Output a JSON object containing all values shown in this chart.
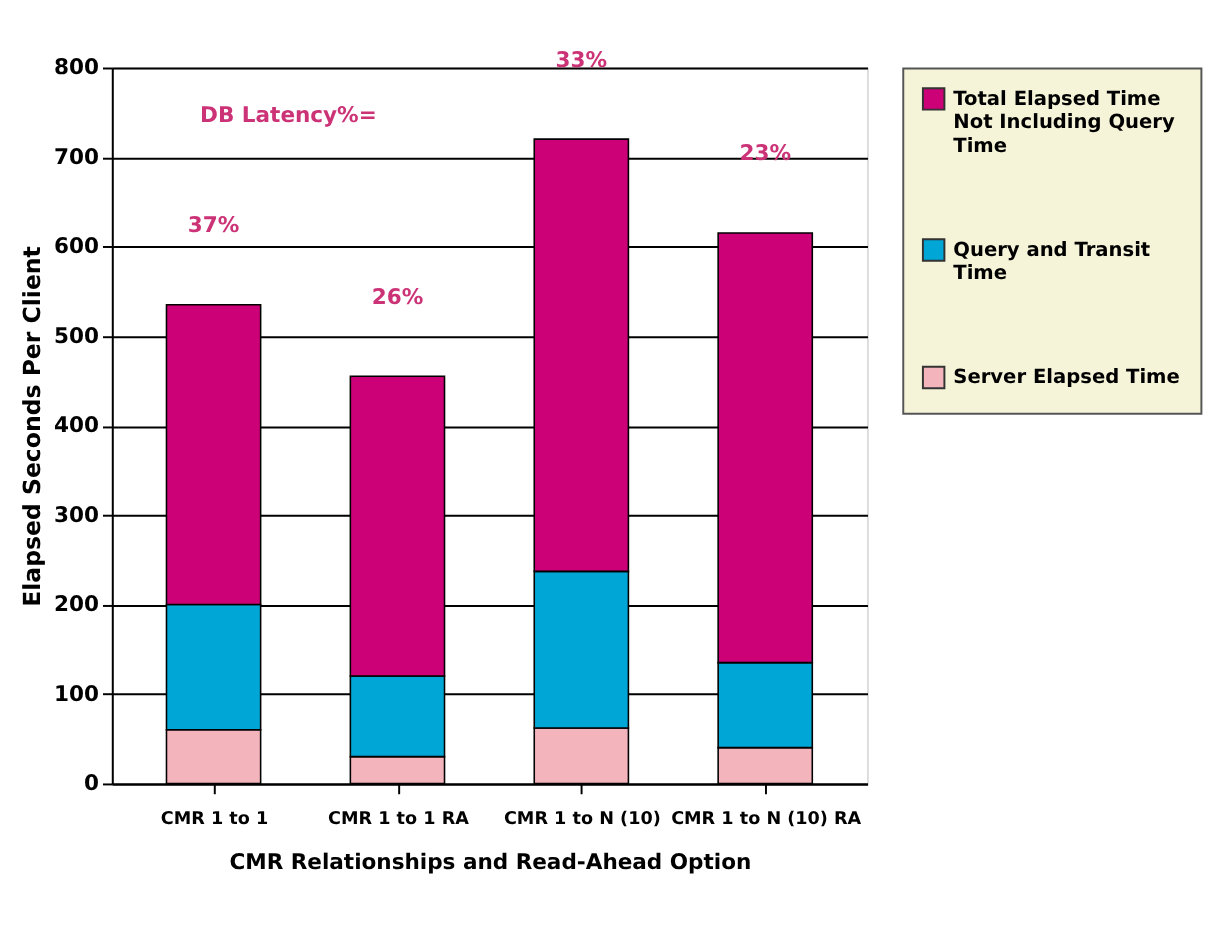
{
  "chart_data": {
    "type": "bar",
    "stacked": true,
    "xlabel": "CMR Relationships and Read-Ahead Option",
    "ylabel": "Elapsed Seconds Per Client",
    "categories": [
      "CMR 1 to 1",
      "CMR 1 to 1 RA",
      "CMR 1 to N (10)",
      "CMR 1 to N (10) RA"
    ],
    "series": [
      {
        "name": "Server Elapsed Time",
        "color": "#f4b4bc",
        "values": [
          60,
          30,
          62,
          40
        ]
      },
      {
        "name": "Query and Transit Time",
        "color": "#00a6d6",
        "values": [
          140,
          90,
          175,
          95
        ]
      },
      {
        "name": "Total Elapsed Time Not Including Query Time",
        "color": "#cc0077",
        "values": [
          335,
          335,
          483,
          480
        ]
      }
    ],
    "ylim": [
      0,
      800
    ],
    "yticks": [
      0,
      100,
      200,
      300,
      400,
      500,
      600,
      700,
      800
    ],
    "grid": "y",
    "legend": "right",
    "annotations": [
      "DB Latency%=",
      "37%",
      "26%",
      "33%",
      "23%"
    ]
  }
}
